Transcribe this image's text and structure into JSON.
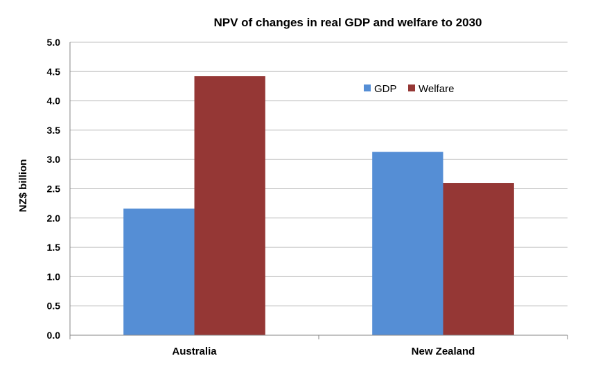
{
  "chart_data": {
    "type": "bar",
    "title": "NPV of changes in real GDP and welfare to 2030",
    "xlabel": "",
    "ylabel": "NZ$ billion",
    "categories": [
      "Australia",
      "New Zealand"
    ],
    "series": [
      {
        "name": "GDP",
        "values": [
          2.16,
          3.13
        ],
        "color": "#558ed5"
      },
      {
        "name": "Welfare",
        "values": [
          4.42,
          2.6
        ],
        "color": "#953735"
      }
    ],
    "ylim": [
      0,
      5.0
    ],
    "yticks": [
      "0.0",
      "0.5",
      "1.0",
      "1.5",
      "2.0",
      "2.5",
      "3.0",
      "3.5",
      "4.0",
      "4.5",
      "5.0"
    ],
    "grid": true,
    "legend_position": "top-right"
  }
}
